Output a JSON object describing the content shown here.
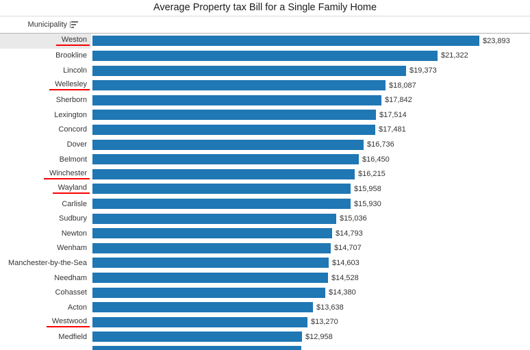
{
  "title_bar": {
    "title": "Average Property tax Bill for a Single Family Home"
  },
  "header": {
    "column_label": "Municipality",
    "sort_icon": "sort-descending-icon"
  },
  "colors": {
    "bar": "#1f77b4",
    "highlight_row_bg": "#e9e9e9",
    "underline": "#fb0000",
    "title_divider": "#d9d9d9",
    "header_divider": "#b5b5b5"
  },
  "chart_data": {
    "type": "bar",
    "orientation": "horizontal",
    "title": "Average Property tax Bill for a Single Family Home",
    "xlabel": "",
    "ylabel": "Municipality",
    "xlim": [
      0,
      24000
    ],
    "value_axis_visible": false,
    "grid": false,
    "sort": "descending",
    "categories": [
      "Weston",
      "Brookline",
      "Lincoln",
      "Wellesley",
      "Sherborn",
      "Lexington",
      "Concord",
      "Dover",
      "Belmont",
      "Winchester",
      "Wayland",
      "Carlisle",
      "Sudbury",
      "Newton",
      "Wenham",
      "Manchester-by-the-Sea",
      "Needham",
      "Cohasset",
      "Acton",
      "Westwood",
      "Medfield"
    ],
    "values": [
      23893,
      21322,
      19373,
      18087,
      17842,
      17514,
      17481,
      16736,
      16450,
      16215,
      15958,
      15930,
      15036,
      14793,
      14707,
      14603,
      14528,
      14380,
      13638,
      13270,
      12958
    ],
    "value_labels": [
      "$23,893",
      "$21,322",
      "$19,373",
      "$18,087",
      "$17,842",
      "$17,514",
      "$17,481",
      "$16,736",
      "$16,450",
      "$16,215",
      "$15,958",
      "$15,930",
      "$15,036",
      "$14,793",
      "$14,707",
      "$14,603",
      "$14,528",
      "$14,380",
      "$13,638",
      "$13,270",
      "$12,958"
    ],
    "underlined_categories": [
      "Weston",
      "Wellesley",
      "Winchester",
      "Wayland",
      "Westwood"
    ],
    "highlighted_category": "Weston",
    "partial_bottom_bar_value": 12900
  }
}
